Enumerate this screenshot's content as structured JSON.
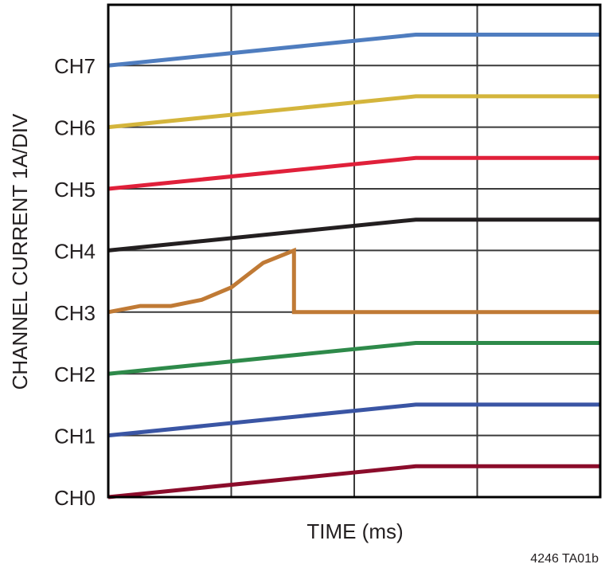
{
  "chart_data": {
    "type": "line",
    "title": "",
    "xlabel": "TIME (ms)",
    "ylabel": "CHANNEL CURRENT 1A/DIV",
    "footnote": "4246 TA01b",
    "x_divisions": 4,
    "y_ticks": [
      "CH0",
      "CH1",
      "CH2",
      "CH3",
      "CH4",
      "CH5",
      "CH6",
      "CH7"
    ],
    "grid": true,
    "x_range": [
      0,
      4
    ],
    "y_range_div": [
      0,
      8
    ],
    "series": [
      {
        "name": "CH0",
        "color": "#8b0c2b",
        "baseline": 0,
        "points": [
          [
            0,
            0
          ],
          [
            2.5,
            0.5
          ],
          [
            4,
            0.5
          ]
        ]
      },
      {
        "name": "CH1",
        "color": "#3a55a4",
        "baseline": 1,
        "points": [
          [
            0,
            0
          ],
          [
            2.5,
            0.5
          ],
          [
            4,
            0.5
          ]
        ]
      },
      {
        "name": "CH2",
        "color": "#2e8a4a",
        "baseline": 2,
        "points": [
          [
            0,
            0
          ],
          [
            2.5,
            0.5
          ],
          [
            4,
            0.5
          ]
        ]
      },
      {
        "name": "CH3",
        "color": "#c07a35",
        "baseline": 3,
        "points": [
          [
            0,
            0
          ],
          [
            0.26,
            0.1
          ],
          [
            0.51,
            0.1
          ],
          [
            0.76,
            0.2
          ],
          [
            1.0,
            0.4
          ],
          [
            1.26,
            0.8
          ],
          [
            1.51,
            1.0
          ],
          [
            1.51,
            0
          ],
          [
            4,
            0
          ]
        ]
      },
      {
        "name": "CH4",
        "color": "#231f20",
        "baseline": 4,
        "points": [
          [
            0,
            0
          ],
          [
            2.5,
            0.5
          ],
          [
            4,
            0.5
          ]
        ]
      },
      {
        "name": "CH5",
        "color": "#e0203a",
        "baseline": 5,
        "points": [
          [
            0,
            0
          ],
          [
            2.5,
            0.5
          ],
          [
            4,
            0.5
          ]
        ]
      },
      {
        "name": "CH6",
        "color": "#d4b53c",
        "baseline": 6,
        "points": [
          [
            0,
            0
          ],
          [
            2.5,
            0.5
          ],
          [
            4,
            0.5
          ]
        ]
      },
      {
        "name": "CH7",
        "color": "#4f7dbf",
        "baseline": 7,
        "points": [
          [
            0,
            0
          ],
          [
            2.5,
            0.5
          ],
          [
            4,
            0.5
          ]
        ]
      }
    ]
  }
}
